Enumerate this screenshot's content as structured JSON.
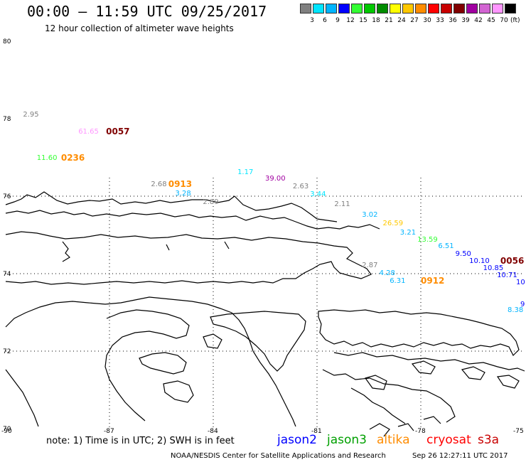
{
  "header": {
    "title": "00:00 – 11:59 UTC 09/25/2017",
    "subtitle": "12 hour collection of altimeter wave heights"
  },
  "legend": {
    "unit_label": "(ft)",
    "bins": [
      {
        "label": "3",
        "color": "#808080"
      },
      {
        "label": "6",
        "color": "#00e5ff"
      },
      {
        "label": "9",
        "color": "#00b4ff"
      },
      {
        "label": "12",
        "color": "#0000ff"
      },
      {
        "label": "15",
        "color": "#33ff33"
      },
      {
        "label": "18",
        "color": "#00c800"
      },
      {
        "label": "21",
        "color": "#008c00"
      },
      {
        "label": "24",
        "color": "#ffff00"
      },
      {
        "label": "27",
        "color": "#ffc800"
      },
      {
        "label": "30",
        "color": "#ff8c00"
      },
      {
        "label": "33",
        "color": "#ff0000"
      },
      {
        "label": "36",
        "color": "#c80000"
      },
      {
        "label": "39",
        "color": "#800000"
      },
      {
        "label": "42",
        "color": "#a000a0"
      },
      {
        "label": "45",
        "color": "#d264d2"
      },
      {
        "label": "70",
        "color": "#ff96ff"
      },
      {
        "label": "",
        "color": "#000000"
      }
    ]
  },
  "map": {
    "lat_ticks": [
      "80",
      "78",
      "76",
      "74",
      "72",
      "70"
    ],
    "lon_ticks": [
      "-90",
      "-87",
      "-84",
      "-81",
      "-78",
      "-75"
    ],
    "lat_range": [
      70,
      80
    ],
    "lon_range": [
      -90,
      -75
    ]
  },
  "observations": [
    {
      "text": "2.95",
      "color": "#808080",
      "lon": -89.5,
      "lat": 78.1
    },
    {
      "text": "61.65",
      "color": "#ff96ff",
      "lon": -87.9,
      "lat": 77.65
    },
    {
      "text": "11.60",
      "color": "#33ff33",
      "lon": -89.1,
      "lat": 76.97
    },
    {
      "text": "1.17",
      "color": "#00e5ff",
      "lon": -83.3,
      "lat": 76.6
    },
    {
      "text": "39.00",
      "color": "#a000a0",
      "lon": -82.5,
      "lat": 76.44
    },
    {
      "text": "2.68",
      "color": "#808080",
      "lon": -85.8,
      "lat": 76.3
    },
    {
      "text": "2.63",
      "color": "#808080",
      "lon": -81.7,
      "lat": 76.23
    },
    {
      "text": "3.28",
      "color": "#00b4ff",
      "lon": -85.1,
      "lat": 76.05
    },
    {
      "text": "3.44",
      "color": "#00e5ff",
      "lon": -81.2,
      "lat": 76.03
    },
    {
      "text": "2.89",
      "color": "#808080",
      "lon": -84.3,
      "lat": 75.83
    },
    {
      "text": "2.11",
      "color": "#808080",
      "lon": -80.5,
      "lat": 75.78
    },
    {
      "text": "3.02",
      "color": "#00b4ff",
      "lon": -79.7,
      "lat": 75.5
    },
    {
      "text": "26.59",
      "color": "#ffc800",
      "lon": -79.1,
      "lat": 75.28
    },
    {
      "text": "3.21",
      "color": "#00b4ff",
      "lon": -78.6,
      "lat": 75.05
    },
    {
      "text": "13.59",
      "color": "#33ff33",
      "lon": -78.1,
      "lat": 74.87
    },
    {
      "text": "6.51",
      "color": "#00b4ff",
      "lon": -77.5,
      "lat": 74.69
    },
    {
      "text": "9.50",
      "color": "#0000ff",
      "lon": -77.0,
      "lat": 74.5
    },
    {
      "text": "10.10",
      "color": "#0000ff",
      "lon": -76.6,
      "lat": 74.32
    },
    {
      "text": "10.85",
      "color": "#0000ff",
      "lon": -76.2,
      "lat": 74.13
    },
    {
      "text": "10.71",
      "color": "#0000ff",
      "lon": -75.8,
      "lat": 73.95
    },
    {
      "text": "10",
      "color": "#0000ff",
      "lon": -75.1,
      "lat": 73.77
    },
    {
      "text": "9",
      "color": "#0000ff",
      "lon": -75.05,
      "lat": 73.2
    },
    {
      "text": "8.38",
      "color": "#00b4ff",
      "lon": -75.4,
      "lat": 73.05
    },
    {
      "text": "2.87",
      "color": "#808080",
      "lon": -79.7,
      "lat": 74.2
    },
    {
      "text": "4.28",
      "color": "#00b4ff",
      "lon": -79.2,
      "lat": 74.0
    },
    {
      "text": "6.31",
      "color": "#00b4ff",
      "lon": -78.9,
      "lat": 73.8
    }
  ],
  "pass_times": [
    {
      "text": "0057",
      "color": "#800000",
      "lon": -87.1,
      "lat": 77.67
    },
    {
      "text": "0236",
      "color": "#ff8c00",
      "lon": -88.4,
      "lat": 76.99
    },
    {
      "text": "0913",
      "color": "#ff8c00",
      "lon": -85.3,
      "lat": 76.31
    },
    {
      "text": "0056",
      "color": "#800000",
      "lon": -75.7,
      "lat": 74.33
    },
    {
      "text": "0912",
      "color": "#ff8c00",
      "lon": -78.0,
      "lat": 73.82
    }
  ],
  "footer": {
    "note": "note: 1) Time is in UTC; 2) SWH is in feet",
    "satellites": [
      {
        "name": "jason2",
        "color": "#0000ff"
      },
      {
        "name": "jason3",
        "color": "#00a000"
      },
      {
        "name": "altika",
        "color": "#ff8c00"
      },
      {
        "name": "cryosat",
        "color": "#ff0000"
      },
      {
        "name": "s3a",
        "color": "#c80000"
      }
    ],
    "credit": "NOAA/NESDIS Center for Satellite Applications and Research",
    "timestamp": "Sep 26 12:27:11 UTC 2017"
  }
}
